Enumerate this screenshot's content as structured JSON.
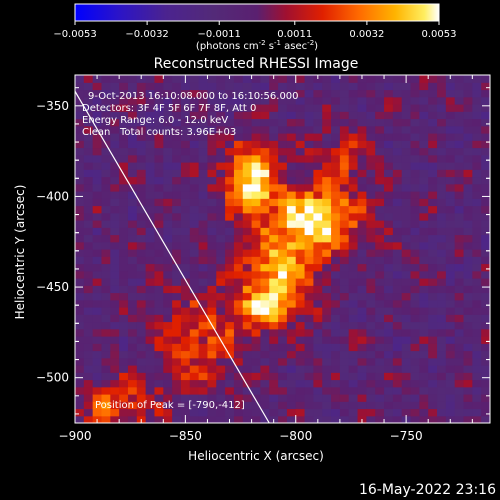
{
  "chart_data": {
    "type": "heatmap",
    "title": "Reconstructed RHESSI Image",
    "xlabel": "Heliocentric X (arcsec)",
    "ylabel": "Heliocentric Y (arcsec)",
    "xlim": [
      -900,
      -712
    ],
    "ylim": [
      -525,
      -333
    ],
    "x_ticks": [
      -900,
      -850,
      -800,
      -750
    ],
    "y_ticks": [
      -350,
      -400,
      -450,
      -500
    ],
    "colorbar": {
      "range": [
        -0.0053,
        0.0053
      ],
      "ticks": [
        "-0.0053",
        "-0.0032",
        "-0.0011",
        "0.0011",
        "0.0032",
        "0.0053"
      ],
      "unit_label": "(photons cm",
      "unit_sup1": "-2",
      "unit_mid1": " s",
      "unit_sup2": "-1",
      "unit_mid2": " asec",
      "unit_sup3": "-2",
      "unit_end": ")"
    },
    "annotations": {
      "time_range": "9-Oct-2013 16:10:08.000 to 16:10:56.000",
      "detectors": "Detectors: 3F 4F 5F 6F 7F 8F, Att 0",
      "energy_range": "Energy Range: 6.0 - 12.0 keV",
      "algorithm": "Clean",
      "total_counts": "Total counts: 3.96E+03",
      "peak_position": "Position of Peak = [-790,-412]"
    },
    "limb_line": {
      "from": [
        -900,
        -342
      ],
      "to": [
        -812,
        -525
      ]
    },
    "sources": [
      {
        "x": -820,
        "y": -390,
        "sx": 9,
        "sy": 14,
        "amp": 1.0
      },
      {
        "x": -790,
        "y": -412,
        "sx": 14,
        "sy": 12,
        "amp": 1.05
      },
      {
        "x": -807,
        "y": -440,
        "sx": 12,
        "sy": 14,
        "amp": 0.8
      },
      {
        "x": -815,
        "y": -462,
        "sx": 11,
        "sy": 10,
        "amp": 0.65
      },
      {
        "x": -780,
        "y": -378,
        "sx": 10,
        "sy": 10,
        "amp": 0.45
      },
      {
        "x": -845,
        "y": -480,
        "sx": 14,
        "sy": 18,
        "amp": 0.5
      },
      {
        "x": -880,
        "y": -515,
        "sx": 12,
        "sy": 10,
        "amp": 0.55
      }
    ]
  },
  "footer": {
    "date": "16-May-2022 23:16"
  }
}
